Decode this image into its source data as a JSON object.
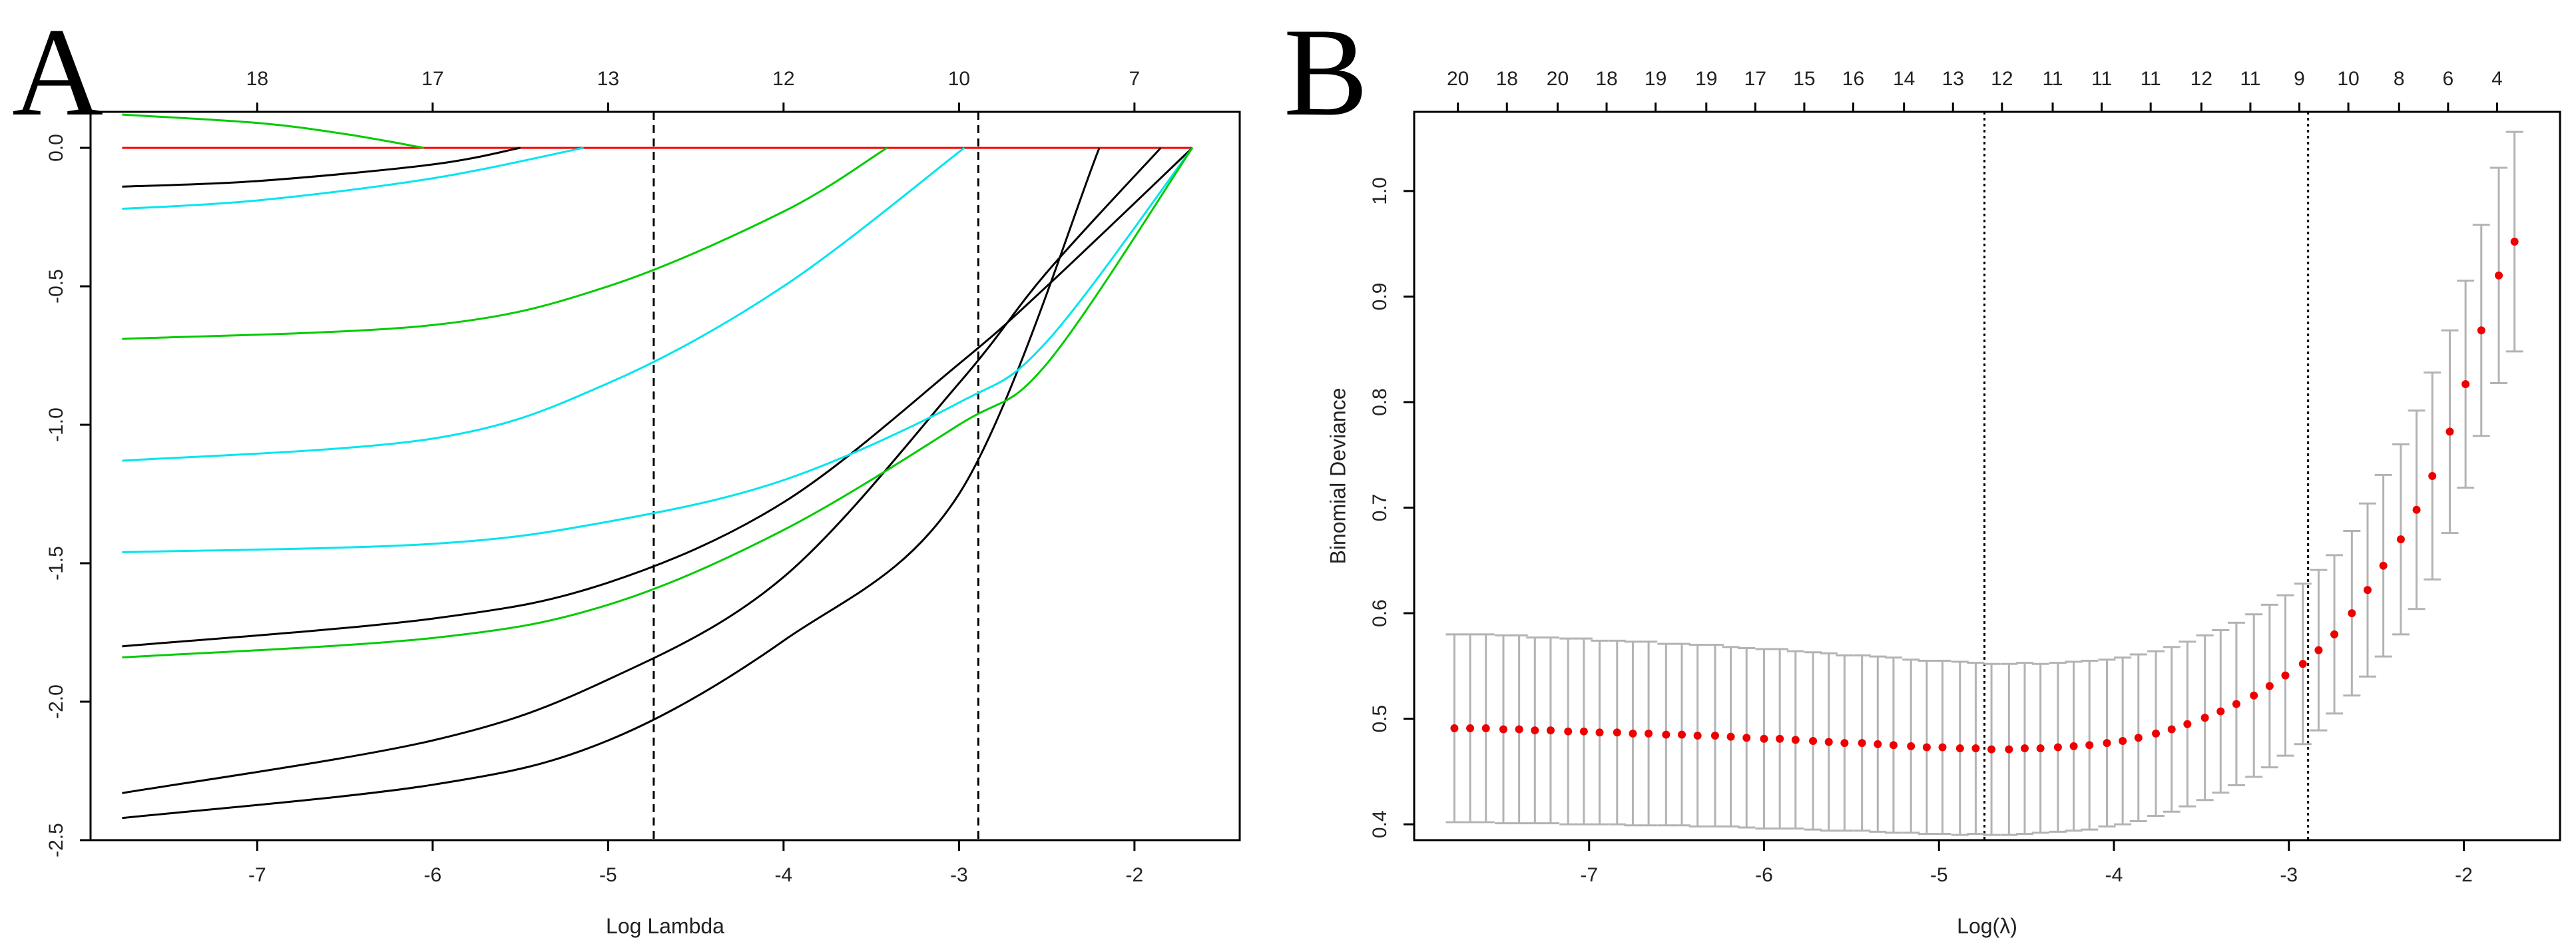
{
  "chart_data": [
    {
      "panel": "A",
      "type": "line",
      "title": "",
      "xlabel": "Log Lambda",
      "ylabel": "",
      "xlim": [
        -7.95,
        -1.4
      ],
      "ylim": [
        -2.5,
        0.13
      ],
      "x_ticks": [
        -7,
        -6,
        -5,
        -4,
        -3,
        -2
      ],
      "y_ticks": [
        -2.5,
        -2.0,
        -1.5,
        -1.0,
        -0.5,
        0.0
      ],
      "y_tick_labels": [
        "-2.5",
        "-2.0",
        "-1.5",
        "-1.0",
        "-0.5",
        "0.0"
      ],
      "top_axis": [
        {
          "x": -7.0,
          "label": "18"
        },
        {
          "x": -6.0,
          "label": "17"
        },
        {
          "x": -5.0,
          "label": "13"
        },
        {
          "x": -4.0,
          "label": "12"
        },
        {
          "x": -3.0,
          "label": "10"
        },
        {
          "x": -2.0,
          "label": "7"
        }
      ],
      "vlines": [
        -4.74,
        -2.89
      ],
      "series": [
        {
          "name": "red",
          "color": "#ff0000",
          "x": [
            -7.77,
            -1.67
          ],
          "y": [
            0.0,
            0.0
          ]
        },
        {
          "name": "green-1",
          "color": "#00cc00",
          "x": [
            -7.77,
            -7.0,
            -6.5,
            -6.05
          ],
          "y": [
            0.12,
            0.09,
            0.05,
            0.0
          ]
        },
        {
          "name": "black-1",
          "color": "#000000",
          "x": [
            -7.77,
            -7.0,
            -6.0,
            -5.5
          ],
          "y": [
            -0.14,
            -0.12,
            -0.06,
            0.0
          ]
        },
        {
          "name": "cyan-1",
          "color": "#00e5ee",
          "x": [
            -7.77,
            -7.0,
            -6.0,
            -5.14
          ],
          "y": [
            -0.22,
            -0.19,
            -0.11,
            0.0
          ]
        },
        {
          "name": "green-2",
          "color": "#00cc00",
          "x": [
            -7.77,
            -6.0,
            -5.0,
            -4.0,
            -3.41
          ],
          "y": [
            -0.69,
            -0.64,
            -0.5,
            -0.23,
            0.0
          ]
        },
        {
          "name": "cyan-2",
          "color": "#00e5ee",
          "x": [
            -7.77,
            -6.0,
            -5.0,
            -4.0,
            -2.97
          ],
          "y": [
            -1.13,
            -1.05,
            -0.85,
            -0.5,
            0.0
          ]
        },
        {
          "name": "black-2",
          "color": "#000000",
          "x": [
            -7.77,
            -6.0,
            -5.0,
            -4.0,
            -3.0,
            -2.2
          ],
          "y": [
            -2.42,
            -2.3,
            -2.14,
            -1.78,
            -1.25,
            0.0
          ]
        },
        {
          "name": "black-3",
          "color": "#000000",
          "x": [
            -7.77,
            -6.0,
            -5.0,
            -4.0,
            -3.0,
            -2.5,
            -1.85
          ],
          "y": [
            -2.33,
            -2.14,
            -1.92,
            -1.55,
            -0.85,
            -0.45,
            0.0
          ]
        },
        {
          "name": "black-4",
          "color": "#000000",
          "x": [
            -7.77,
            -6.0,
            -5.0,
            -4.0,
            -3.0,
            -2.5,
            -1.67
          ],
          "y": [
            -1.8,
            -1.7,
            -1.57,
            -1.28,
            -0.78,
            -0.5,
            0.0
          ]
        },
        {
          "name": "cyan-3",
          "color": "#00e5ee",
          "x": [
            -7.77,
            -6.0,
            -5.0,
            -4.0,
            -3.0,
            -2.5,
            -1.67
          ],
          "y": [
            -1.46,
            -1.43,
            -1.35,
            -1.2,
            -0.92,
            -0.7,
            0.0
          ]
        },
        {
          "name": "green-3",
          "color": "#00cc00",
          "x": [
            -7.77,
            -6.0,
            -5.0,
            -4.0,
            -3.0,
            -2.5,
            -1.67
          ],
          "y": [
            -1.84,
            -1.77,
            -1.65,
            -1.38,
            -1.0,
            -0.78,
            0.0
          ]
        }
      ]
    },
    {
      "panel": "B",
      "type": "scatter",
      "title": "",
      "xlabel": "Log(λ)",
      "ylabel": "Binomial Deviance",
      "xlim": [
        -8.0,
        -1.45
      ],
      "ylim": [
        0.385,
        1.075
      ],
      "x_ticks": [
        -7,
        -6,
        -5,
        -4,
        -3,
        -2
      ],
      "y_ticks": [
        0.4,
        0.5,
        0.6,
        0.7,
        0.8,
        0.9,
        1.0
      ],
      "y_tick_labels": [
        "0.4",
        "0.5",
        "0.6",
        "0.7",
        "0.8",
        "0.9",
        "1.0"
      ],
      "top_axis": [
        {
          "x": -7.75,
          "label": "20"
        },
        {
          "x": -7.47,
          "label": "18"
        },
        {
          "x": -7.18,
          "label": "20"
        },
        {
          "x": -6.9,
          "label": "18"
        },
        {
          "x": -6.62,
          "label": "19"
        },
        {
          "x": -6.33,
          "label": "19"
        },
        {
          "x": -6.05,
          "label": "17"
        },
        {
          "x": -5.77,
          "label": "15"
        },
        {
          "x": -5.49,
          "label": "16"
        },
        {
          "x": -5.2,
          "label": "14"
        },
        {
          "x": -4.92,
          "label": "13"
        },
        {
          "x": -4.64,
          "label": "12"
        },
        {
          "x": -4.35,
          "label": "11"
        },
        {
          "x": -4.07,
          "label": "11"
        },
        {
          "x": -3.79,
          "label": "11"
        },
        {
          "x": -3.5,
          "label": "12"
        },
        {
          "x": -3.22,
          "label": "11"
        },
        {
          "x": -2.94,
          "label": "9"
        },
        {
          "x": -2.66,
          "label": "10"
        },
        {
          "x": -2.37,
          "label": "8"
        },
        {
          "x": -2.09,
          "label": "6"
        },
        {
          "x": -1.81,
          "label": "4"
        }
      ],
      "vlines": [
        -4.74,
        -2.89
      ],
      "point_color": "#ee0000",
      "errorbar_color": "#b3b3b3",
      "x": [
        -7.77,
        -7.68,
        -7.59,
        -7.49,
        -7.4,
        -7.31,
        -7.22,
        -7.12,
        -7.03,
        -6.94,
        -6.84,
        -6.75,
        -6.66,
        -6.56,
        -6.47,
        -6.38,
        -6.28,
        -6.19,
        -6.1,
        -6.0,
        -5.91,
        -5.82,
        -5.72,
        -5.63,
        -5.54,
        -5.44,
        -5.35,
        -5.26,
        -5.16,
        -5.07,
        -4.98,
        -4.88,
        -4.79,
        -4.7,
        -4.6,
        -4.51,
        -4.42,
        -4.32,
        -4.23,
        -4.14,
        -4.04,
        -3.95,
        -3.86,
        -3.76,
        -3.67,
        -3.58,
        -3.48,
        -3.39,
        -3.3,
        -3.2,
        -3.11,
        -3.02,
        -2.92,
        -2.83,
        -2.74,
        -2.64,
        -2.55,
        -2.46,
        -2.36,
        -2.27,
        -2.18,
        -2.08,
        -1.99,
        -1.9,
        -1.8,
        -1.71
      ],
      "y": [
        0.491,
        0.491,
        0.491,
        0.49,
        0.49,
        0.489,
        0.489,
        0.488,
        0.488,
        0.487,
        0.487,
        0.486,
        0.486,
        0.485,
        0.485,
        0.484,
        0.484,
        0.483,
        0.482,
        0.481,
        0.481,
        0.48,
        0.479,
        0.478,
        0.477,
        0.477,
        0.476,
        0.475,
        0.474,
        0.473,
        0.473,
        0.472,
        0.472,
        0.471,
        0.471,
        0.472,
        0.472,
        0.473,
        0.474,
        0.475,
        0.477,
        0.479,
        0.482,
        0.486,
        0.49,
        0.495,
        0.501,
        0.507,
        0.514,
        0.522,
        0.531,
        0.541,
        0.552,
        0.565,
        0.58,
        0.6,
        0.622,
        0.645,
        0.67,
        0.698,
        0.73,
        0.772,
        0.817,
        0.868,
        0.92,
        0.952
      ],
      "se": [
        0.089,
        0.089,
        0.089,
        0.089,
        0.089,
        0.088,
        0.088,
        0.088,
        0.088,
        0.087,
        0.087,
        0.087,
        0.087,
        0.086,
        0.086,
        0.086,
        0.086,
        0.085,
        0.085,
        0.085,
        0.085,
        0.084,
        0.084,
        0.084,
        0.083,
        0.083,
        0.083,
        0.083,
        0.082,
        0.082,
        0.082,
        0.082,
        0.081,
        0.081,
        0.081,
        0.081,
        0.08,
        0.08,
        0.08,
        0.08,
        0.079,
        0.079,
        0.079,
        0.078,
        0.078,
        0.078,
        0.078,
        0.077,
        0.077,
        0.077,
        0.077,
        0.076,
        0.076,
        0.076,
        0.075,
        0.078,
        0.082,
        0.086,
        0.09,
        0.094,
        0.098,
        0.096,
        0.098,
        0.1,
        0.102,
        0.104
      ]
    }
  ],
  "panel_labels": {
    "a": "A",
    "b": "B"
  }
}
